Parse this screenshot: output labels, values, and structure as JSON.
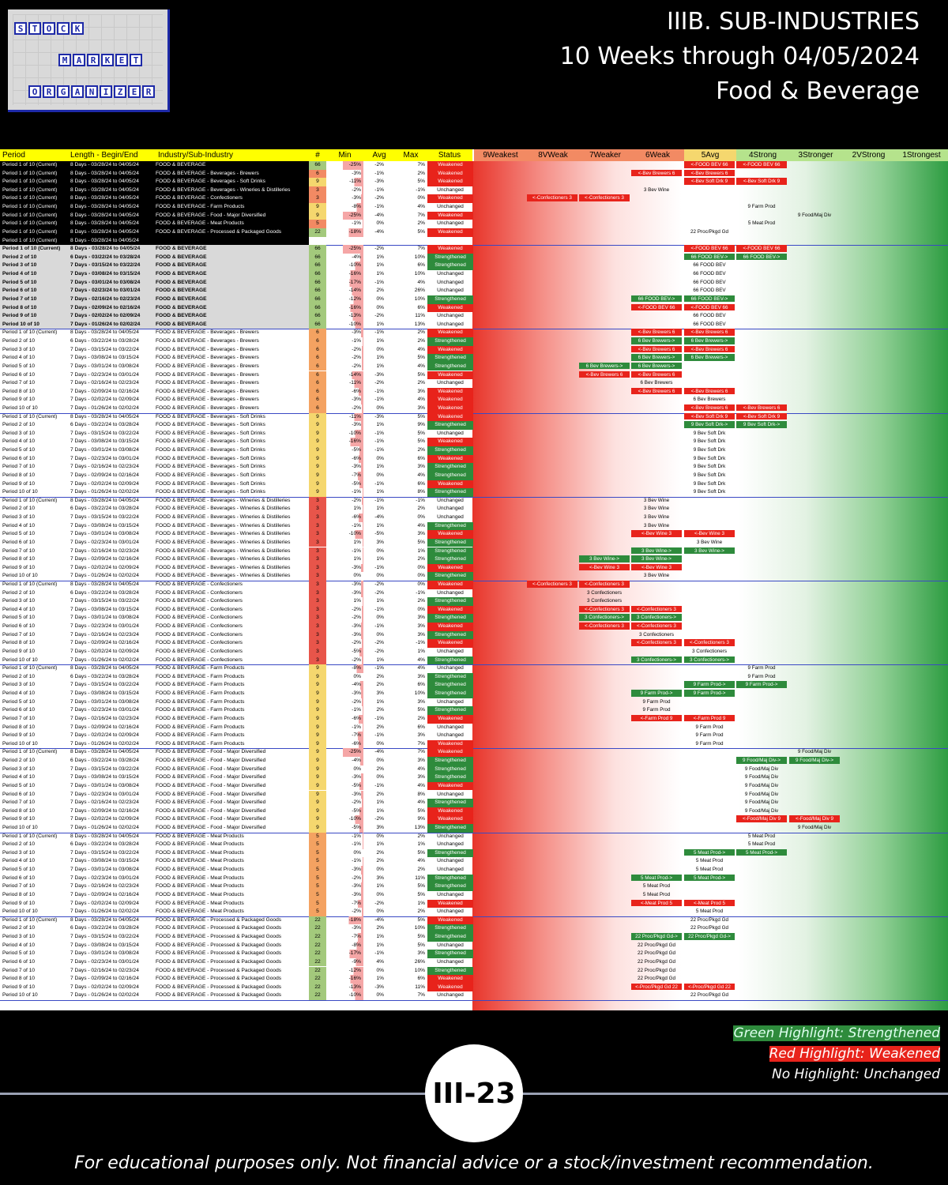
{
  "header": {
    "line1": "IIIB. SUB-INDUSTRIES",
    "line2": "10 Weeks through 04/05/2024",
    "line3": "Food & Beverage"
  },
  "logo": {
    "word1": "STOCK",
    "word2": "MARKET",
    "word3": "ORGANIZER"
  },
  "columns": [
    "Period",
    "Length - Begin/End",
    "Industry/Sub-Industry",
    "#",
    "Min",
    "Avg",
    "Max",
    "Status",
    "9Weakest",
    "8VWeak",
    "7Weaker",
    "6Weak",
    "5Avg",
    "4Strong",
    "3Stronger",
    "2VStrong",
    "1Strongest"
  ],
  "colors": {
    "weakened": "#e8231b",
    "strengthened": "#2e8b3c",
    "header_yellow": "#ffff00"
  },
  "groups": [
    {
      "name": "FOOD & BEVERAGE",
      "count": "66",
      "rows": [
        [
          "Period 1 of 10 (Current)",
          "8 Days - 03/28/24 to 04/05/24",
          "FOOD & BEVERAGE",
          "66",
          "-25%",
          "-2%",
          "7%",
          "Weakened"
        ],
        [
          "Period 2 of 10",
          "6 Days - 03/22/24 to 03/28/24",
          "FOOD & BEVERAGE",
          "66",
          "-4%",
          "1%",
          "10%",
          "Strengthened"
        ],
        [
          "Period 3 of 10",
          "7 Days - 03/15/24 to 03/22/24",
          "FOOD & BEVERAGE",
          "66",
          "-10%",
          "1%",
          "6%",
          "Strengthened"
        ],
        [
          "Period 4 of 10",
          "7 Days - 03/08/24 to 03/15/24",
          "FOOD & BEVERAGE",
          "66",
          "-16%",
          "1%",
          "10%",
          "Unchanged"
        ],
        [
          "Period 5 of 10",
          "7 Days - 03/01/24 to 03/08/24",
          "FOOD & BEVERAGE",
          "66",
          "-17%",
          "-1%",
          "4%",
          "Unchanged"
        ],
        [
          "Period 6 of 10",
          "7 Days - 02/23/24 to 03/01/24",
          "FOOD & BEVERAGE",
          "66",
          "-14%",
          "2%",
          "26%",
          "Unchanged"
        ],
        [
          "Period 7 of 10",
          "7 Days - 02/16/24 to 02/23/24",
          "FOOD & BEVERAGE",
          "66",
          "-12%",
          "0%",
          "10%",
          "Strengthened"
        ],
        [
          "Period 8 of 10",
          "7 Days - 02/09/24 to 02/16/24",
          "FOOD & BEVERAGE",
          "66",
          "-16%",
          "0%",
          "6%",
          "Weakened"
        ],
        [
          "Period 9 of 10",
          "7 Days - 02/02/24 to 02/09/24",
          "FOOD & BEVERAGE",
          "66",
          "-13%",
          "-2%",
          "11%",
          "Unchanged"
        ],
        [
          "Period 10 of 10",
          "7 Days - 01/26/24 to 02/02/24",
          "FOOD & BEVERAGE",
          "66",
          "-10%",
          "1%",
          "13%",
          "Unchanged"
        ]
      ]
    }
  ],
  "summary_rows": [
    [
      "Period 1 of 10 (Current)",
      "8 Days - 03/28/24 to 04/05/24",
      "FOOD & BEVERAGE",
      "66",
      "-25%",
      "-2%",
      "7%",
      "Weakened",
      "<-FOOD BEV 66",
      "<-FOOD BEV 66"
    ],
    [
      "Period 1 of 10 (Current)",
      "8 Days - 03/28/24 to 04/05/24",
      "FOOD & BEVERAGE - Beverages - Brewers",
      "6",
      "-3%",
      "-1%",
      "2%",
      "Weakened",
      "<-Bev Brewers 6",
      "<-Bev Brewers 6"
    ],
    [
      "Period 1 of 10 (Current)",
      "8 Days - 03/28/24 to 04/05/24",
      "FOOD & BEVERAGE - Beverages - Soft Drinks",
      "9",
      "-11%",
      "-3%",
      "5%",
      "Weakened",
      "<-Bev Soft Drk 9",
      "<-Bev Soft Drk 9"
    ],
    [
      "Period 1 of 10 (Current)",
      "8 Days - 03/28/24 to 04/05/24",
      "FOOD & BEVERAGE - Beverages - Wineries & Distilleries",
      "3",
      "-2%",
      "-1%",
      "-1%",
      "Unchanged",
      "3 Bev Wine",
      ""
    ],
    [
      "Period 1 of 10 (Current)",
      "8 Days - 03/28/24 to 04/05/24",
      "FOOD & BEVERAGE - Confectioners",
      "3",
      "-3%",
      "-2%",
      "0%",
      "Weakened",
      "<-Confectioners 3",
      "<-Confectioners 3"
    ],
    [
      "Period 1 of 10 (Current)",
      "8 Days - 03/28/24 to 04/05/24",
      "FOOD & BEVERAGE - Farm Products",
      "9",
      "-8%",
      "-1%",
      "4%",
      "Unchanged",
      "9 Farm Prod",
      ""
    ],
    [
      "Period 1 of 10 (Current)",
      "8 Days - 03/28/24 to 04/05/24",
      "FOOD & BEVERAGE - Food - Major Diversified",
      "9",
      "-25%",
      "-4%",
      "7%",
      "Weakened",
      "9 Food/Maj Div",
      ""
    ],
    [
      "Period 1 of 10 (Current)",
      "8 Days - 03/28/24 to 04/05/24",
      "FOOD & BEVERAGE - Meat Products",
      "5",
      "-1%",
      "0%",
      "2%",
      "Unchanged",
      "5 Meat Prod",
      ""
    ],
    [
      "Period 1 of 10 (Current)",
      "8 Days - 03/28/24 to 04/05/24",
      "FOOD & BEVERAGE - Processed & Packaged Goods",
      "22",
      "-18%",
      "-4%",
      "5%",
      "Weakened",
      "22 Proc/Pkgd Gd",
      ""
    ],
    [
      "Period 1 of 10 (Current)",
      "8 Days - 03/28/24 to 04/05/24",
      "",
      "",
      "",
      "",
      "",
      "",
      "",
      ""
    ]
  ],
  "sub_sections": [
    {
      "name": "FOOD & BEVERAGE - Beverages - Brewers",
      "count": "6",
      "label": "Bev Brewers 6"
    },
    {
      "name": "FOOD & BEVERAGE - Beverages - Soft Drinks",
      "count": "9",
      "label": "Bev Soft Drk 9"
    },
    {
      "name": "FOOD & BEVERAGE - Beverages - Wineries & Distilleries",
      "count": "3",
      "label": "Bev Wine 3"
    },
    {
      "name": "FOOD & BEVERAGE - Confectioners",
      "count": "3",
      "label": "Confectioners 3"
    },
    {
      "name": "FOOD & BEVERAGE - Farm Products",
      "count": "9",
      "label": "Farm Prod 9"
    },
    {
      "name": "FOOD & BEVERAGE - Food - Major Diversified",
      "count": "9",
      "label": "Food/Maj Div 9"
    },
    {
      "name": "FOOD & BEVERAGE - Meat Products",
      "count": "5",
      "label": "Meat Prod 5"
    },
    {
      "name": "FOOD & BEVERAGE - Processed & Packaged Goods",
      "count": "22",
      "label": "Proc/Pkgd Gd 22"
    }
  ],
  "legend": {
    "green": "Green Highlight: Strengthened",
    "red": "Red Highlight: Weakened",
    "none": "No Highlight: Unchanged"
  },
  "page_number": "III-23",
  "disclaimer": "For educational purposes only. Not financial advice or a stock/investment recommendation."
}
